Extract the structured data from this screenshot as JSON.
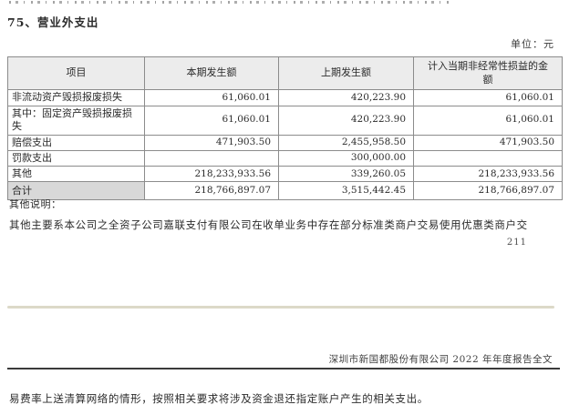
{
  "page": {
    "section_title": "75、营业外支出",
    "unit_label": "单位：元",
    "notes_label": "其他说明：",
    "note_text": "其他主要系本公司之全资子公司嘉联支付有限公司在收单业务中存在部分标准类商户交易使用优惠类商户交",
    "page_number": "211",
    "report_footer": "深圳市新国都股份有限公司 2022 年年度报告全文",
    "continuation_text": "易费率上送清算网络的情形，按照相关要求将涉及资金退还指定账户产生的相关支出。"
  },
  "table": {
    "headers": [
      "项目",
      "本期发生额",
      "上期发生额",
      "计入当期非经常性损益的金额"
    ],
    "rows": [
      {
        "item": "非流动资产毁损报废损失",
        "current": "61,060.01",
        "prior": "420,223.90",
        "non_recurring": "61,060.01"
      },
      {
        "item": "其中：固定资产毁损报废损失",
        "current": "61,060.01",
        "prior": "420,223.90",
        "non_recurring": "61,060.01"
      },
      {
        "item": "赔偿支出",
        "current": "471,903.50",
        "prior": "2,455,958.50",
        "non_recurring": "471,903.50"
      },
      {
        "item": "罚款支出",
        "current": "",
        "prior": "300,000.00",
        "non_recurring": ""
      },
      {
        "item": "其他",
        "current": "218,233,933.56",
        "prior": "339,260.05",
        "non_recurring": "218,233,933.56"
      },
      {
        "item": "合计",
        "current": "218,766,897.07",
        "prior": "3,515,442.45",
        "non_recurring": "218,766,897.07"
      }
    ]
  }
}
